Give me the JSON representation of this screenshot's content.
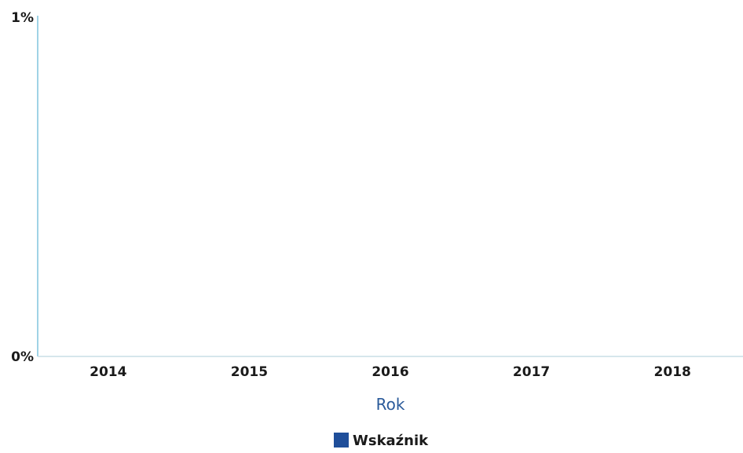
{
  "chart_data": {
    "type": "bar",
    "title": "",
    "xlabel": "Rok",
    "ylabel": "",
    "categories": [
      "2014",
      "2015",
      "2016",
      "2017",
      "2018"
    ],
    "series": [
      {
        "name": "Wskaźnik",
        "values": [
          0,
          0,
          0,
          0,
          0
        ],
        "color": "#1f4e9a"
      }
    ],
    "ylim": [
      0,
      1
    ],
    "y_tick_labels": [
      "0%",
      "1%"
    ],
    "y_ticks": [
      0,
      1
    ],
    "grid": false,
    "legend_position": "bottom-center"
  },
  "colors": {
    "axis_line": "#9fd3e6",
    "baseline": "#c8dde6",
    "axis_title": "#2a5a9a",
    "tick_text": "#1a1a1a",
    "legend_swatch": "#1f4e9a"
  }
}
